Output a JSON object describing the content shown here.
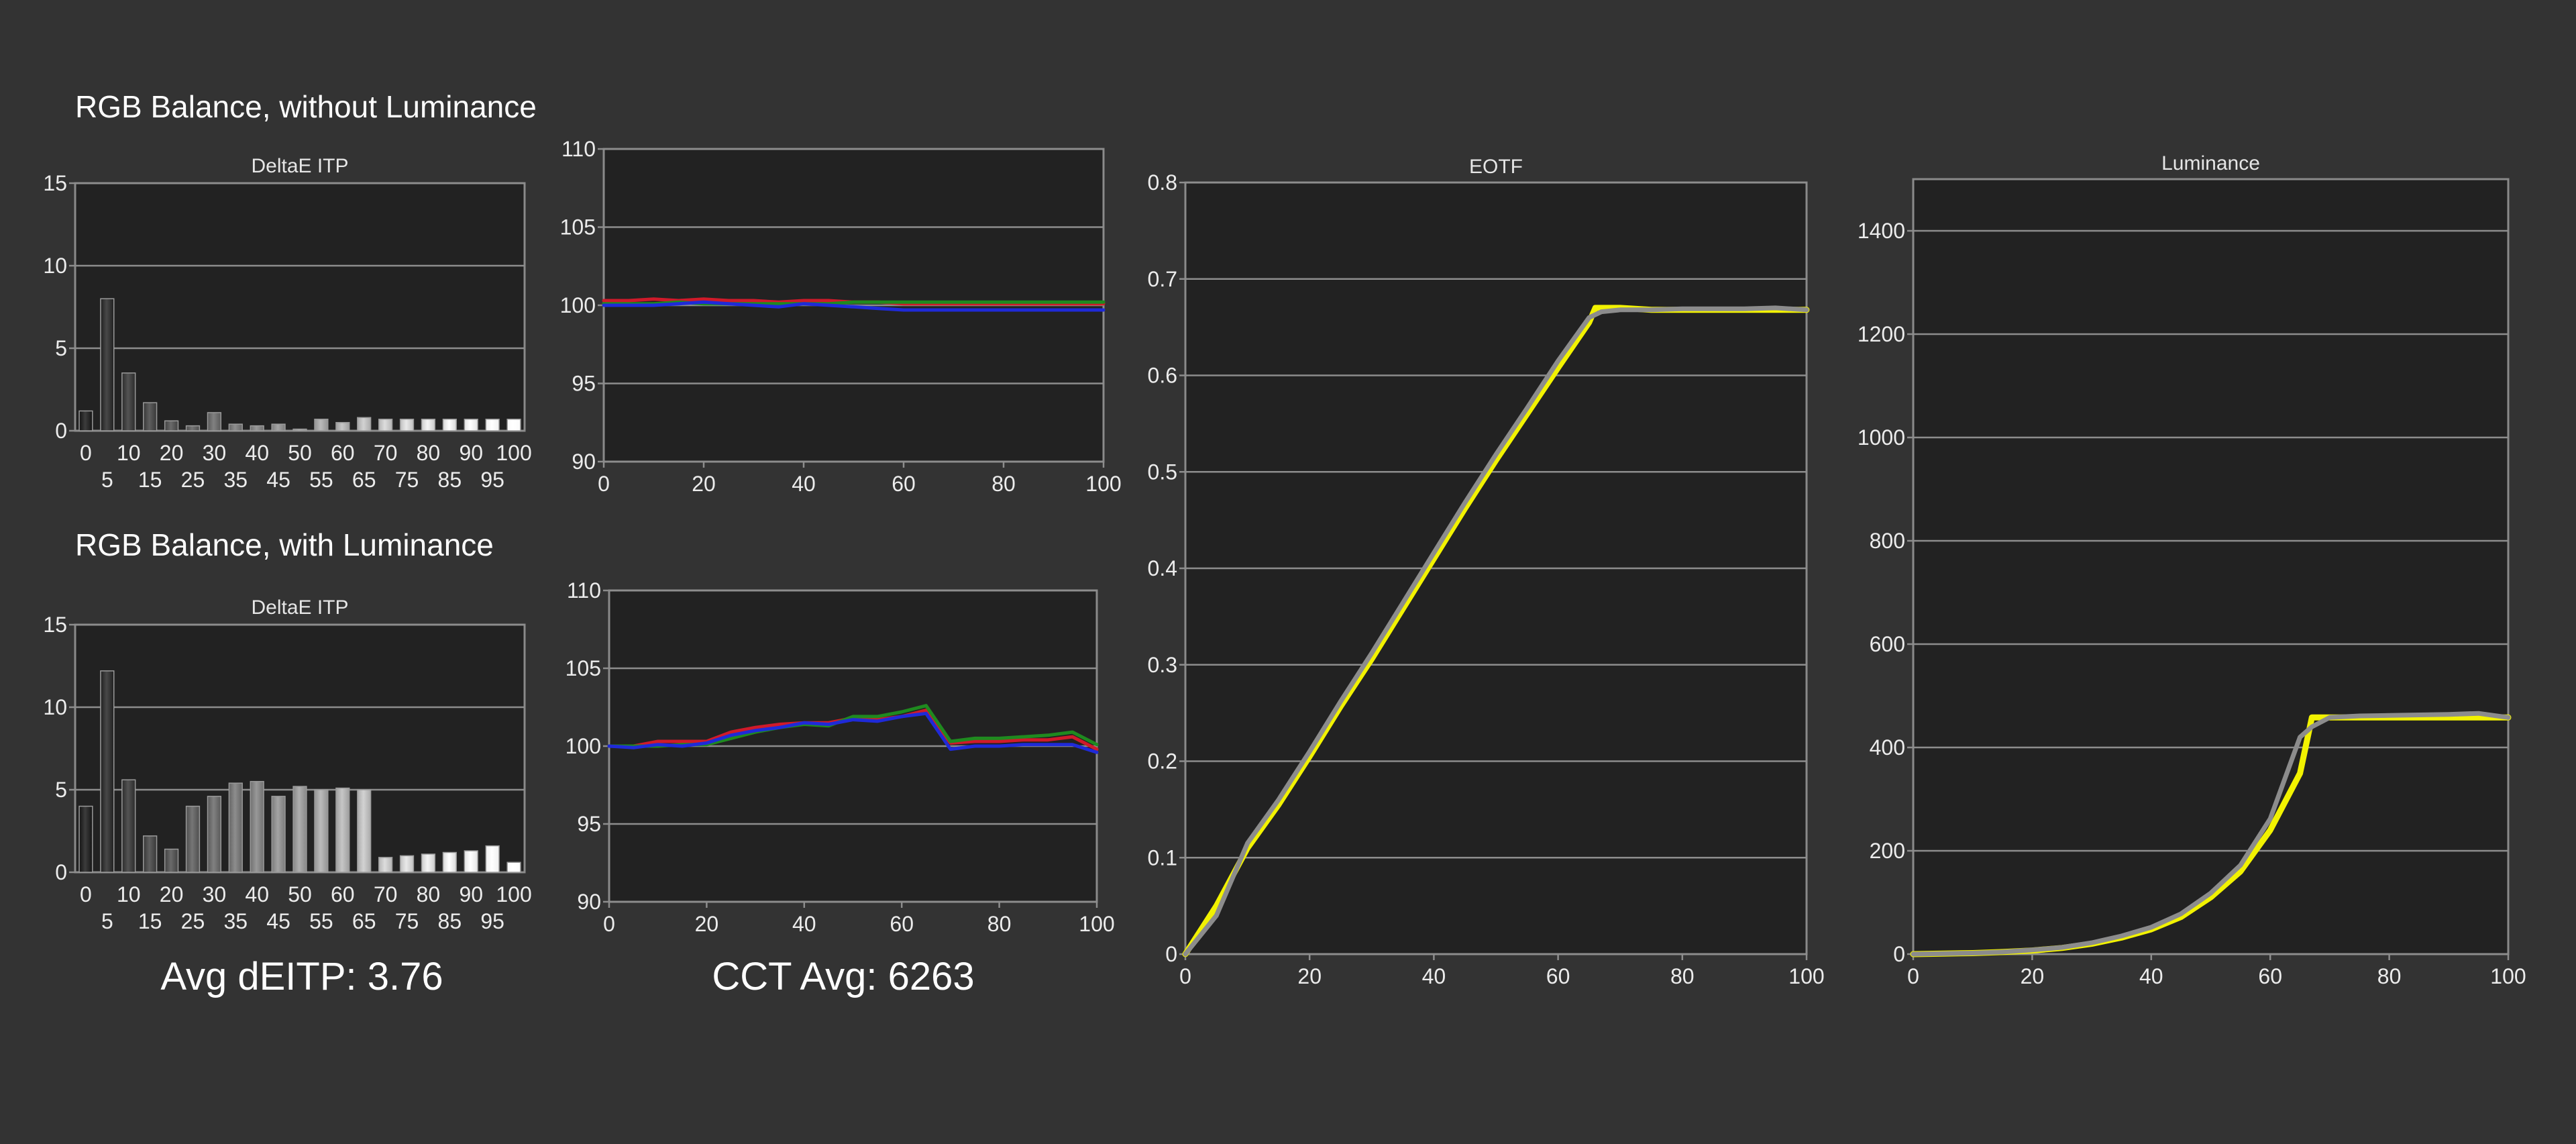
{
  "headings": {
    "without": "RGB Balance, without Luminance",
    "with": "RGB Balance, with Luminance"
  },
  "summary": {
    "deitp": "Avg dEITP: 3.76",
    "cct": "CCT Avg: 6263"
  },
  "colors": {
    "background": "#333333",
    "plot_bg": "#222222",
    "grid": "#8d8d8d",
    "red": "#d01a2a",
    "green": "#1f8a1f",
    "blue": "#1f2ad8",
    "yellow": "#f2f200",
    "gray_curve": "#8c8c8c"
  },
  "chart_data": [
    {
      "id": "deitp-without",
      "type": "bar",
      "title": "DeltaE ITP",
      "categories": [
        "0",
        "5",
        "10",
        "15",
        "20",
        "25",
        "30",
        "35",
        "40",
        "45",
        "50",
        "55",
        "60",
        "65",
        "70",
        "75",
        "80",
        "85",
        "90",
        "95",
        "100"
      ],
      "values": [
        1.2,
        8.0,
        3.5,
        1.7,
        0.6,
        0.3,
        1.1,
        0.4,
        0.3,
        0.4,
        0.1,
        0.7,
        0.5,
        0.8,
        0.7,
        0.7,
        0.7,
        0.7,
        0.7,
        0.7,
        0.7
      ],
      "ylim": [
        0,
        15
      ],
      "yticks": [
        0,
        5,
        10,
        15
      ],
      "grid": true
    },
    {
      "id": "rgb-without",
      "type": "line",
      "x": [
        0,
        5,
        10,
        15,
        20,
        25,
        30,
        35,
        40,
        45,
        50,
        55,
        60,
        65,
        70,
        75,
        80,
        85,
        90,
        95,
        100
      ],
      "series": [
        {
          "color": "#d01a2a",
          "values": [
            100.3,
            100.3,
            100.4,
            100.3,
            100.4,
            100.3,
            100.3,
            100.2,
            100.3,
            100.3,
            100.2,
            100.2,
            100.1,
            100.1,
            100.1,
            100.1,
            100.1,
            100.1,
            100.1,
            100.1,
            100.1
          ]
        },
        {
          "color": "#1f8a1f",
          "values": [
            100.1,
            100.1,
            100.1,
            100.2,
            100.1,
            100.1,
            100.1,
            100.1,
            100.1,
            100.1,
            100.2,
            100.2,
            100.2,
            100.2,
            100.2,
            100.2,
            100.2,
            100.2,
            100.2,
            100.2,
            100.2
          ]
        },
        {
          "color": "#1f2ad8",
          "values": [
            100.0,
            100.0,
            100.0,
            100.1,
            100.2,
            100.1,
            100.0,
            99.9,
            100.1,
            100.0,
            99.9,
            99.8,
            99.7,
            99.7,
            99.7,
            99.7,
            99.7,
            99.7,
            99.7,
            99.7,
            99.7
          ]
        }
      ],
      "xlim": [
        0,
        100
      ],
      "ylim": [
        90,
        110
      ],
      "xticks": [
        0,
        20,
        40,
        60,
        80,
        100
      ],
      "yticks": [
        90,
        95,
        100,
        105,
        110
      ],
      "grid": true
    },
    {
      "id": "deitp-with",
      "type": "bar",
      "title": "DeltaE ITP",
      "categories": [
        "0",
        "5",
        "10",
        "15",
        "20",
        "25",
        "30",
        "35",
        "40",
        "45",
        "50",
        "55",
        "60",
        "65",
        "70",
        "75",
        "80",
        "85",
        "90",
        "95",
        "100"
      ],
      "values": [
        4.0,
        12.2,
        5.6,
        2.2,
        1.4,
        4.0,
        4.6,
        5.4,
        5.5,
        4.6,
        5.2,
        5.0,
        5.1,
        5.0,
        0.9,
        1.0,
        1.1,
        1.2,
        1.3,
        1.6,
        0.6
      ],
      "ylim": [
        0,
        15
      ],
      "yticks": [
        0,
        5,
        10,
        15
      ],
      "grid": true
    },
    {
      "id": "rgb-with",
      "type": "line",
      "x": [
        0,
        5,
        10,
        15,
        20,
        25,
        30,
        35,
        40,
        45,
        50,
        55,
        60,
        65,
        70,
        75,
        80,
        85,
        90,
        95,
        100
      ],
      "series": [
        {
          "color": "#d01a2a",
          "values": [
            100.0,
            100.0,
            100.3,
            100.3,
            100.3,
            100.9,
            101.2,
            101.4,
            101.5,
            101.5,
            101.8,
            101.7,
            101.9,
            102.3,
            100.2,
            100.3,
            100.3,
            100.4,
            100.4,
            100.6,
            99.8
          ]
        },
        {
          "color": "#1f8a1f",
          "values": [
            100.0,
            100.0,
            100.0,
            100.1,
            100.1,
            100.5,
            100.9,
            101.2,
            101.4,
            101.3,
            101.9,
            101.9,
            102.2,
            102.6,
            100.3,
            100.5,
            100.5,
            100.6,
            100.7,
            100.9,
            100.1
          ]
        },
        {
          "color": "#1f2ad8",
          "values": [
            100.0,
            99.9,
            100.1,
            100.0,
            100.2,
            100.7,
            101.0,
            101.2,
            101.5,
            101.4,
            101.7,
            101.6,
            101.9,
            102.1,
            99.8,
            100.0,
            100.0,
            100.1,
            100.1,
            100.1,
            99.6
          ]
        }
      ],
      "xlim": [
        0,
        100
      ],
      "ylim": [
        90,
        110
      ],
      "xticks": [
        0,
        20,
        40,
        60,
        80,
        100
      ],
      "yticks": [
        90,
        95,
        100,
        105,
        110
      ],
      "grid": true
    },
    {
      "id": "eotf",
      "type": "line",
      "title": "EOTF",
      "x": [
        0,
        5,
        10,
        15,
        20,
        25,
        30,
        35,
        40,
        45,
        50,
        55,
        60,
        65,
        66,
        67,
        70,
        75,
        80,
        85,
        90,
        95,
        100
      ],
      "series": [
        {
          "color": "#f2f200",
          "values": [
            0.0,
            0.05,
            0.11,
            0.155,
            0.205,
            0.257,
            0.306,
            0.358,
            0.41,
            0.462,
            0.512,
            0.56,
            0.608,
            0.655,
            0.67,
            0.67,
            0.67,
            0.668,
            0.668,
            0.668,
            0.668,
            0.668,
            0.668
          ]
        },
        {
          "color": "#8c8c8c",
          "values": [
            0.0,
            0.04,
            0.115,
            0.16,
            0.21,
            0.262,
            0.312,
            0.364,
            0.416,
            0.468,
            0.518,
            0.566,
            0.615,
            0.66,
            0.663,
            0.666,
            0.668,
            0.668,
            0.669,
            0.669,
            0.669,
            0.67,
            0.668
          ]
        }
      ],
      "xlim": [
        0,
        100
      ],
      "ylim": [
        0,
        0.8
      ],
      "xticks": [
        0,
        20,
        40,
        60,
        80,
        100
      ],
      "yticks": [
        0,
        0.1,
        0.2,
        0.3,
        0.4,
        0.5,
        0.6,
        0.7,
        0.8
      ],
      "grid": true
    },
    {
      "id": "luminance",
      "type": "line",
      "title": "Luminance",
      "x": [
        0,
        5,
        10,
        15,
        20,
        25,
        30,
        35,
        40,
        45,
        50,
        55,
        60,
        65,
        67,
        70,
        75,
        80,
        85,
        90,
        95,
        100
      ],
      "series": [
        {
          "color": "#f2f200",
          "values": [
            0,
            1,
            2,
            4,
            7,
            12,
            20,
            32,
            48,
            72,
            110,
            160,
            240,
            350,
            458,
            458,
            458,
            458,
            458,
            458,
            458,
            458
          ]
        },
        {
          "color": "#8c8c8c",
          "values": [
            0,
            1,
            2,
            4,
            8,
            13,
            22,
            35,
            52,
            78,
            118,
            172,
            262,
            420,
            440,
            458,
            461,
            462,
            463,
            464,
            466,
            458
          ]
        }
      ],
      "xlim": [
        0,
        100
      ],
      "ylim": [
        0,
        1500
      ],
      "xticks": [
        0,
        20,
        40,
        60,
        80,
        100
      ],
      "yticks": [
        0,
        200,
        400,
        600,
        800,
        1000,
        1200,
        1400
      ],
      "grid": true
    }
  ]
}
